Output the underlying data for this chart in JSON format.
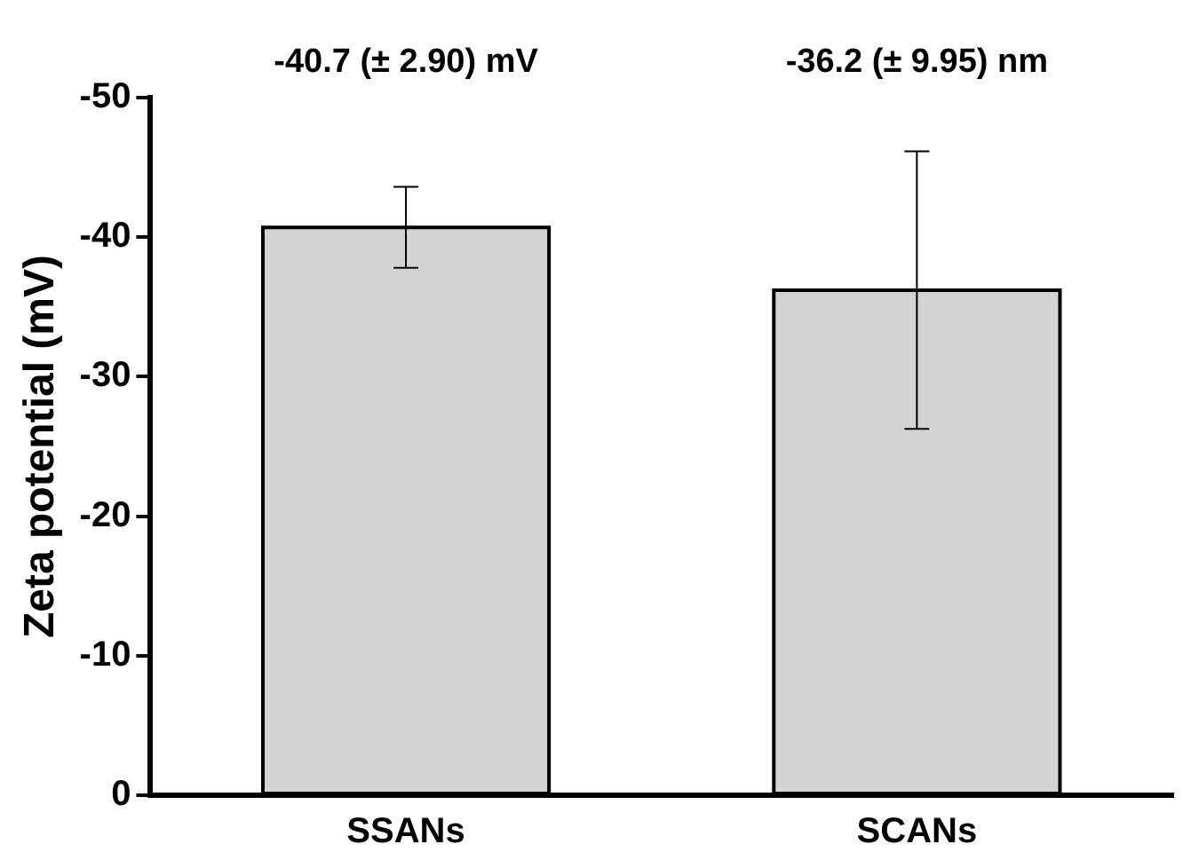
{
  "chart_data": {
    "type": "bar",
    "ylabel": "Zeta potential (mV)",
    "categories": [
      "SSANs",
      "SCANs"
    ],
    "values": [
      -40.7,
      -36.2
    ],
    "errors": [
      2.9,
      9.95
    ],
    "annotations": [
      "-40.7 (± 2.90) mV",
      "-36.2 (± 9.95) nm"
    ],
    "color": "#d4d4d4",
    "ylim": [
      0,
      -50
    ],
    "yticks": [
      0,
      -10,
      -20,
      -30,
      -40,
      -50
    ],
    "grid": false,
    "legend": false
  }
}
